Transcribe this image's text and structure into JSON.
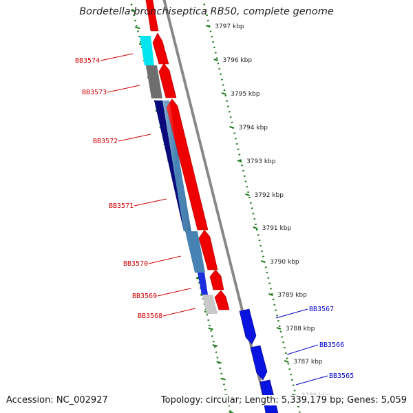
{
  "title": "Bordetella bronchiseptica RB50, complete genome",
  "accession": "Accession: NC_002927",
  "summary": "Topology: circular; Length: 5,339,179 bp; Genes: 5,059",
  "colors": {
    "label_left": "#cc0000",
    "label_right": "#0000cc",
    "backbone": "#888888",
    "tick_green": "#1a7a1a",
    "cds_red": "#ee0000",
    "cds_blue": "#0a14e0"
  },
  "scale_ticks": [
    {
      "label": "3797 kbp"
    },
    {
      "label": "3796 kbp"
    },
    {
      "label": "3795 kbp"
    },
    {
      "label": "3794 kbp"
    },
    {
      "label": "3793 kbp"
    },
    {
      "label": "3792 kbp"
    },
    {
      "label": "3791 kbp"
    },
    {
      "label": "3790 kbp"
    },
    {
      "label": "3789 kbp"
    },
    {
      "label": "3788 kbp"
    },
    {
      "label": "3787 kbp"
    },
    {
      "label": "3786 kbp"
    }
  ],
  "genes": [
    {
      "name": "BB3574",
      "strand": "reverse",
      "color": "#00e5f0"
    },
    {
      "name": "BB3573",
      "strand": "reverse",
      "color": "#6e6e6e"
    },
    {
      "name": "BB3572",
      "strand": "reverse",
      "color": "#0a0a7a"
    },
    {
      "name": "BB3571",
      "strand": "reverse",
      "color": "#4682b4"
    },
    {
      "name": "BB3570",
      "strand": "reverse",
      "color": "#4682b4"
    },
    {
      "name": "BB3569",
      "strand": "reverse",
      "color": "#1a2ee0"
    },
    {
      "name": "BB3568",
      "strand": "reverse",
      "color": "#c8c8c8"
    },
    {
      "name": "BB3567",
      "strand": "forward",
      "color": "#0a14e0"
    },
    {
      "name": "BB3566",
      "strand": "forward",
      "color": "#0a14e0"
    },
    {
      "name": "BB3565",
      "strand": "forward",
      "color": "#0a14e0"
    }
  ]
}
